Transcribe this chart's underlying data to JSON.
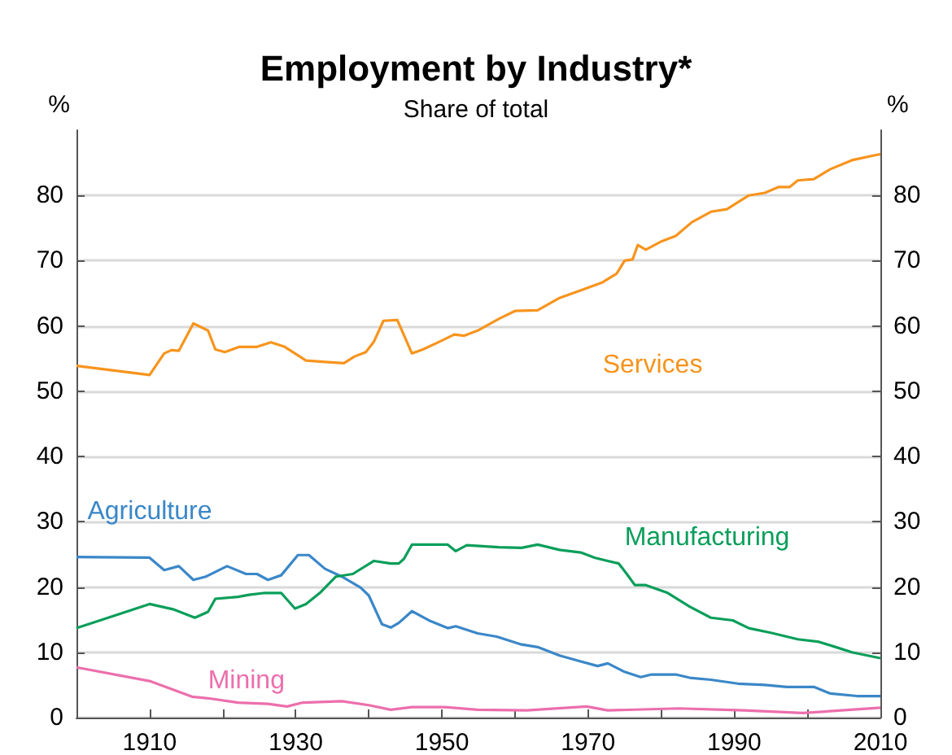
{
  "chart_data": {
    "type": "line",
    "title": "Employment by Industry*",
    "subtitle": "Share of total",
    "ylabel": "%",
    "y2label": "%",
    "xlim": [
      1900,
      2010
    ],
    "xticks": [
      {
        "value": 1900,
        "label": null
      },
      1910,
      {
        "value": 1920,
        "label": null
      },
      1930,
      {
        "value": 1940,
        "label": null
      },
      1950,
      {
        "value": 1960,
        "label": null
      },
      1970,
      {
        "value": 1980,
        "label": null
      },
      1990,
      {
        "value": 2000,
        "label": null
      },
      2010
    ],
    "ylim": [
      0,
      90
    ],
    "yticks": [
      0,
      10,
      20,
      30,
      40,
      50,
      60,
      70,
      80
    ],
    "y2lim": [
      0,
      90
    ],
    "y2ticks": [
      0,
      10,
      20,
      30,
      40,
      50,
      60,
      70,
      80
    ],
    "grid": "y",
    "legend": false,
    "marker": "none",
    "line_style": "solid",
    "series": [
      {
        "name": "Services",
        "color": "#f7941d",
        "x": [
          1900,
          1910,
          1912,
          1913,
          1914,
          1916,
          1918,
          1919,
          1920.3,
          1922.3,
          1924.7,
          1926.6,
          1928.5,
          1931.4,
          1934,
          1936.6,
          1938,
          1939.6,
          1940.7,
          1942,
          1943.9,
          1945.9,
          1947.4,
          1949.7,
          1951.7,
          1953,
          1954.9,
          1957.8,
          1960,
          1963.1,
          1966.1,
          1969.8,
          1972,
          1973.9,
          1975,
          1976.1,
          1976.8,
          1977.9,
          1980.1,
          1982,
          1984.2,
          1986.8,
          1989,
          1992,
          1994.2,
          1996.1,
          1997.6,
          1998.7,
          2000.9,
          2003.1,
          2006.1,
          2009.4,
          2010
        ],
        "values": [
          53.9,
          52.5,
          55.8,
          56.3,
          56.2,
          60.4,
          59.3,
          56.4,
          56,
          56.8,
          56.8,
          57.5,
          56.8,
          54.7,
          54.5,
          54.3,
          55.3,
          56,
          57.6,
          60.8,
          60.9,
          55.8,
          56.4,
          57.6,
          58.7,
          58.5,
          59.3,
          61.1,
          62.3,
          62.4,
          64.3,
          65.8,
          66.7,
          68,
          70,
          70.2,
          72.4,
          71.7,
          73,
          73.8,
          75.9,
          77.5,
          77.9,
          80,
          80.4,
          81.3,
          81.3,
          82.3,
          82.5,
          84,
          85.4,
          86.2,
          86.3
        ]
      },
      {
        "name": "Agriculture",
        "color": "#3a87c8",
        "x": [
          1900,
          1910,
          1912,
          1914,
          1916,
          1917.7,
          1920.6,
          1923.2,
          1924.7,
          1926.2,
          1928,
          1930.3,
          1931.8,
          1934,
          1936.3,
          1938.9,
          1940,
          1941.8,
          1943,
          1944.1,
          1945.9,
          1948.2,
          1950.8,
          1951.9,
          1954.9,
          1957.5,
          1960.9,
          1963.1,
          1966.1,
          1968.7,
          1971.3,
          1972.7,
          1975,
          1977.2,
          1978.7,
          1982,
          1983.9,
          1986.8,
          1990.5,
          1994.2,
          1997.2,
          2000.9,
          2003.1,
          2006.8,
          2010
        ],
        "values": [
          24.6,
          24.5,
          22.6,
          23.2,
          21.1,
          21.6,
          23.2,
          22,
          22,
          21.1,
          21.8,
          24.9,
          24.9,
          22.8,
          21.6,
          19.9,
          18.7,
          14.3,
          13.8,
          14.5,
          16.3,
          14.9,
          13.7,
          14,
          12.9,
          12.4,
          11.2,
          10.8,
          9.5,
          8.7,
          7.9,
          8.3,
          7,
          6.2,
          6.6,
          6.6,
          6.1,
          5.8,
          5.2,
          5,
          4.7,
          4.7,
          3.7,
          3.3,
          3.3
        ]
      },
      {
        "name": "Manufacturing",
        "color": "#0a9e5a",
        "x": [
          1900,
          1910,
          1913.2,
          1916.2,
          1918,
          1919,
          1922.1,
          1923.6,
          1925.8,
          1928,
          1929.9,
          1931.4,
          1933.3,
          1935.5,
          1937.8,
          1940.7,
          1943,
          1944.1,
          1944.8,
          1945.9,
          1949.7,
          1950.8,
          1951.9,
          1953.4,
          1957.8,
          1960.9,
          1963.1,
          1966.1,
          1969,
          1970.9,
          1972.7,
          1974.2,
          1975.3,
          1976.4,
          1977.9,
          1980.9,
          1983.9,
          1986.8,
          1989.8,
          1992,
          1995,
          1998.7,
          2001.6,
          2003.9,
          2006.1,
          2010
        ],
        "values": [
          13.7,
          17.4,
          16.6,
          15.3,
          16.2,
          18.2,
          18.5,
          18.8,
          19.1,
          19.1,
          16.7,
          17.4,
          19.1,
          21.6,
          22,
          24,
          23.6,
          23.6,
          24.3,
          26.5,
          26.5,
          26.5,
          25.5,
          26.4,
          26.1,
          26,
          26.5,
          25.7,
          25.3,
          24.5,
          24,
          23.6,
          22,
          20.3,
          20.3,
          19.1,
          17,
          15.3,
          14.9,
          13.7,
          13,
          12,
          11.6,
          10.8,
          10,
          9.1
        ]
      },
      {
        "name": "Mining",
        "color": "#ec6fac",
        "x": [
          1900,
          1910,
          1915.8,
          1918.4,
          1922.1,
          1926.2,
          1928.8,
          1931,
          1936.3,
          1940,
          1943,
          1945.9,
          1950.4,
          1954.9,
          1961.6,
          1969.8,
          1972.7,
          1982.4,
          1991.3,
          1999.4,
          2010
        ],
        "values": [
          7.7,
          5.6,
          3.2,
          2.9,
          2.3,
          2.1,
          1.7,
          2.3,
          2.5,
          1.9,
          1.2,
          1.6,
          1.6,
          1.2,
          1.1,
          1.7,
          1.1,
          1.4,
          1.1,
          0.7,
          1.5
        ]
      }
    ]
  }
}
